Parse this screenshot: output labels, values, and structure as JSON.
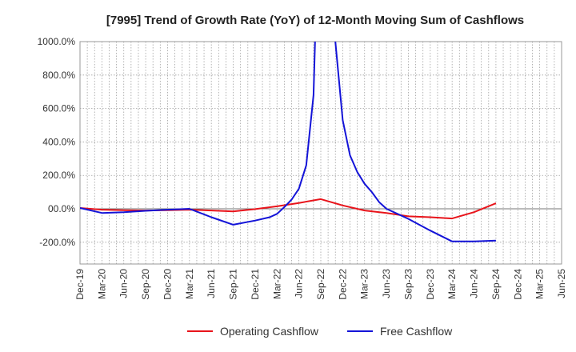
{
  "chart_data": {
    "type": "line",
    "title": "[7995]  Trend of Growth Rate (YoY) of 12-Month Moving Sum of Cashflows",
    "xlabel": "",
    "ylabel": "",
    "ylim": [
      -330,
      1000
    ],
    "y_ticks": [
      {
        "value": 1000,
        "label": "1000.0%"
      },
      {
        "value": 800,
        "label": "800.0%"
      },
      {
        "value": 600,
        "label": "600.0%"
      },
      {
        "value": 400,
        "label": "400.0%"
      },
      {
        "value": 200,
        "label": "200.0%"
      },
      {
        "value": 0,
        "label": "00.0%"
      },
      {
        "value": -200,
        "label": "-200.0%"
      }
    ],
    "x_tick_labels": [
      "Dec-19",
      "Mar-20",
      "Jun-20",
      "Sep-20",
      "Dec-20",
      "Mar-21",
      "Jun-21",
      "Sep-21",
      "Dec-21",
      "Mar-22",
      "Jun-22",
      "Sep-22",
      "Dec-22",
      "Mar-23",
      "Jun-23",
      "Sep-23",
      "Dec-23",
      "Mar-24",
      "Jun-24",
      "Sep-24",
      "Dec-24",
      "Mar-25",
      "Jun-25"
    ],
    "x_range_months": [
      0,
      66
    ],
    "grid": true,
    "legend_position": "bottom",
    "series": [
      {
        "name": "Operating Cashflow",
        "color": "#e8141b",
        "points": [
          [
            "Dec-19",
            5
          ],
          [
            "Mar-20",
            -5
          ],
          [
            "Jun-20",
            -8
          ],
          [
            "Sep-20",
            -10
          ],
          [
            "Dec-20",
            -8
          ],
          [
            "Mar-21",
            -5
          ],
          [
            "Jun-21",
            -10
          ],
          [
            "Sep-21",
            -15
          ],
          [
            "Dec-21",
            -2
          ],
          [
            "Mar-22",
            15
          ],
          [
            "Jun-22",
            35
          ],
          [
            "Sep-22",
            58
          ],
          [
            "Dec-22",
            20
          ],
          [
            "Mar-23",
            -10
          ],
          [
            "Jun-23",
            -25
          ],
          [
            "Sep-23",
            -45
          ],
          [
            "Dec-23",
            -50
          ],
          [
            "Mar-24",
            -58
          ],
          [
            "Jun-24",
            -20
          ],
          [
            "Sep-24",
            33
          ]
        ]
      },
      {
        "name": "Free Cashflow",
        "color": "#1414d8",
        "points": [
          [
            "Dec-19",
            5
          ],
          [
            "Mar-20",
            -25
          ],
          [
            "Jun-20",
            -20
          ],
          [
            "Sep-20",
            -12
          ],
          [
            "Dec-20",
            -5
          ],
          [
            "Mar-21",
            0
          ],
          [
            "Jun-21",
            -50
          ],
          [
            "Sep-21",
            -95
          ],
          [
            "Dec-21",
            -70
          ],
          [
            "Feb-22",
            -50
          ],
          [
            "Mar-22",
            -30
          ],
          [
            "Apr-22",
            10
          ],
          [
            "May-22",
            55
          ],
          [
            "Jun-22",
            120
          ],
          [
            "Jul-22",
            260
          ],
          [
            "Aug-22",
            680
          ],
          [
            "Sep-22",
            2200
          ],
          [
            "Oct-22",
            2200
          ],
          [
            "Nov-22",
            1000
          ],
          [
            "Dec-22",
            530
          ],
          [
            "Jan-23",
            320
          ],
          [
            "Feb-23",
            220
          ],
          [
            "Mar-23",
            150
          ],
          [
            "Apr-23",
            100
          ],
          [
            "May-23",
            40
          ],
          [
            "Jun-23",
            0
          ],
          [
            "Sep-23",
            -60
          ],
          [
            "Dec-23",
            -130
          ],
          [
            "Mar-24",
            -195
          ],
          [
            "Jun-24",
            -195
          ],
          [
            "Sep-24",
            -190
          ]
        ]
      }
    ]
  }
}
